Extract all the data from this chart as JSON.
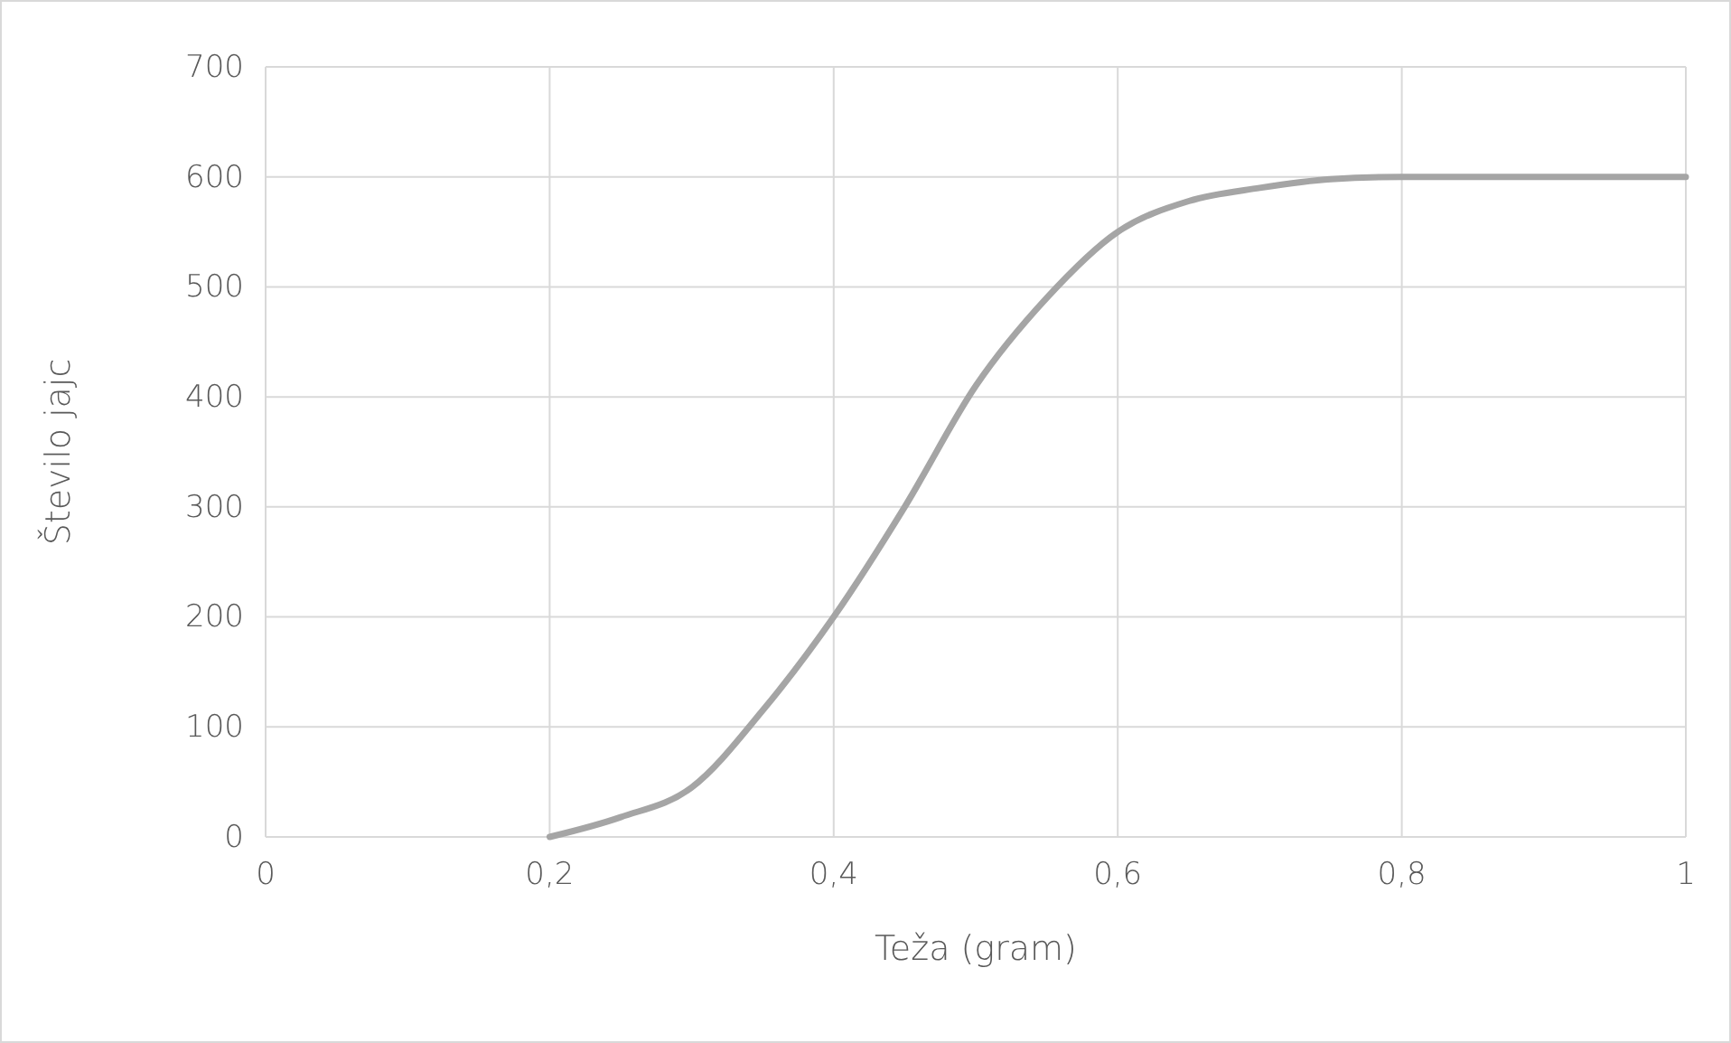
{
  "chart_data": {
    "type": "line",
    "xlabel": "Teža (gram)",
    "ylabel": "Število jajc",
    "x": [
      0.2,
      0.25,
      0.3,
      0.35,
      0.4,
      0.45,
      0.5,
      0.55,
      0.6,
      0.65,
      0.7,
      0.75,
      0.8,
      0.9,
      1
    ],
    "series": [
      {
        "color": "#a5a5a5",
        "values": [
          0,
          18,
          45,
          115,
          200,
          300,
          410,
          490,
          550,
          578,
          590,
          598,
          600,
          600,
          600
        ]
      }
    ],
    "xlim": [
      0,
      1
    ],
    "xticks": [
      {
        "value": 0,
        "label": "0"
      },
      {
        "value": 0.2,
        "label": "0,2"
      },
      {
        "value": 0.4,
        "label": "0,4"
      },
      {
        "value": 0.6,
        "label": "0,6"
      },
      {
        "value": 0.8,
        "label": "0,8"
      },
      {
        "value": 1,
        "label": "1"
      }
    ],
    "ylim": [
      0,
      700
    ],
    "yticks": [
      0,
      100,
      200,
      300,
      400,
      500,
      600,
      700
    ],
    "grid": true,
    "marker": "none",
    "line_style": "solid"
  }
}
